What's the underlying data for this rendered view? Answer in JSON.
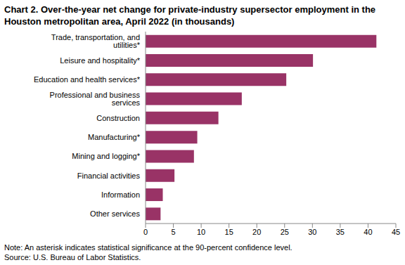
{
  "chart_data": {
    "type": "bar",
    "title": "Chart 2. Over-the-year net change for private-industry supersector employment in the Houston metropolitan area, April 2022 (in thousands)",
    "categories": [
      "Trade, transportation, and utilities*",
      "Leisure and hospitality*",
      "Education and health services*",
      "Professional and business services",
      "Construction",
      "Manufacturing*",
      "Mining and logging*",
      "Financial activities",
      "Information",
      "Other services"
    ],
    "values": [
      41.5,
      30.1,
      25.3,
      17.3,
      13.1,
      9.3,
      8.7,
      5.2,
      3.1,
      2.7
    ],
    "color": "#993366",
    "orientation": "horizontal",
    "xlim": [
      0,
      45
    ],
    "xticks": [
      0,
      5,
      10,
      15,
      20,
      25,
      30,
      35,
      40,
      45
    ],
    "grid": false,
    "note": "Note: An asterisk indicates statistical significance at the 90-percent confidence level.",
    "source": "Source: U.S. Bureau of Labor Statistics."
  }
}
